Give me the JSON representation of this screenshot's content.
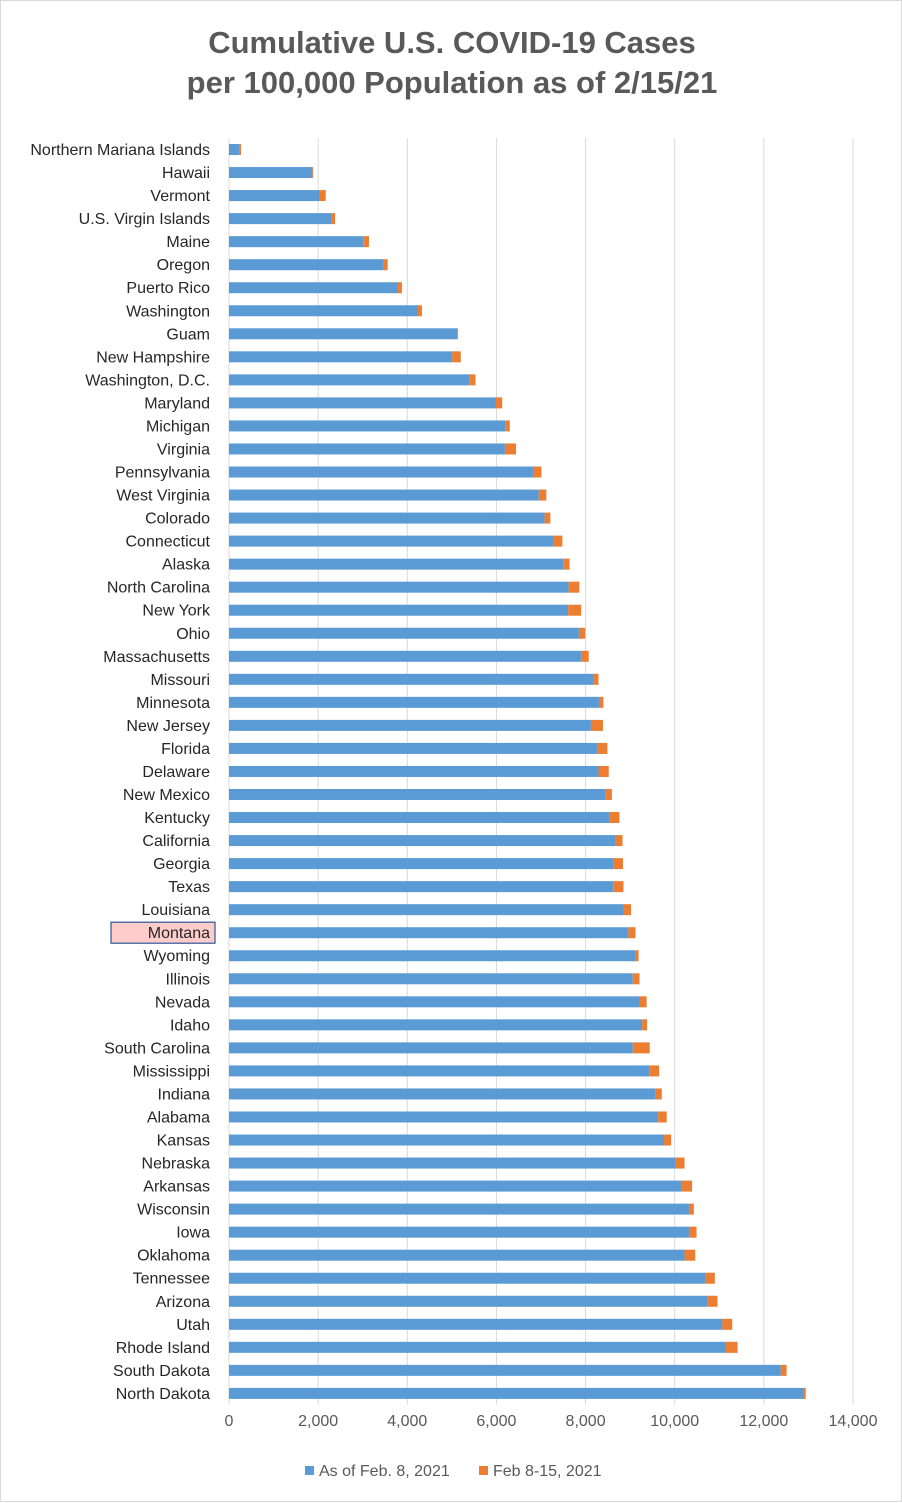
{
  "title_line1": "Cumulative U.S. COVID-19 Cases",
  "title_line2": "per 100,000 Population as of 2/15/21",
  "colors": {
    "base": "#5b9bd5",
    "delta": "#ed7d31",
    "grid": "#d9d9d9",
    "highlight_fill": "#ffcccc",
    "highlight_border": "#2f5597"
  },
  "highlight_category": "Montana",
  "chart_data": {
    "type": "bar",
    "orientation": "horizontal",
    "stacked": true,
    "title": "Cumulative U.S. COVID-19 Cases per 100,000 Population as of 2/15/21",
    "xlim": [
      0,
      14000
    ],
    "x_ticks": [
      0,
      2000,
      4000,
      6000,
      8000,
      10000,
      12000,
      14000
    ],
    "x_tick_labels": [
      "0",
      "2,000",
      "4,000",
      "6,000",
      "8,000",
      "10,000",
      "12,000",
      "14,000"
    ],
    "grid": true,
    "legend_position": "bottom",
    "categories": [
      "Northern Mariana Islands",
      "Hawaii",
      "Vermont",
      "U.S. Virgin Islands",
      "Maine",
      "Oregon",
      "Puerto Rico",
      "Washington",
      "Guam",
      "New Hampshire",
      "Washington, D.C.",
      "Maryland",
      "Michigan",
      "Virginia",
      "Pennsylvania",
      "West Virginia",
      "Colorado",
      "Connecticut",
      "Alaska",
      "North Carolina",
      "New York",
      "Ohio",
      "Massachusetts",
      "Missouri",
      "Minnesota",
      "New Jersey",
      "Florida",
      "Delaware",
      "New Mexico",
      "Kentucky",
      "California",
      "Georgia",
      "Texas",
      "Louisiana",
      "Montana",
      "Wyoming",
      "Illinois",
      "Nevada",
      "Idaho",
      "South Carolina",
      "Mississippi",
      "Indiana",
      "Alabama",
      "Kansas",
      "Nebraska",
      "Arkansas",
      "Wisconsin",
      "Iowa",
      "Oklahoma",
      "Tennessee",
      "Arizona",
      "Utah",
      "Rhode Island",
      "South Dakota",
      "North Dakota"
    ],
    "series": [
      {
        "name": "As of Feb. 8, 2021",
        "values": [
          240,
          1870,
          2040,
          2290,
          3010,
          3470,
          3790,
          4240,
          5120,
          5010,
          5390,
          5990,
          6210,
          6190,
          6820,
          6950,
          7080,
          7270,
          7500,
          7620,
          7610,
          7850,
          7900,
          8180,
          8300,
          8120,
          8270,
          8290,
          8440,
          8540,
          8680,
          8630,
          8620,
          8860,
          8960,
          9110,
          9060,
          9220,
          9270,
          9060,
          9440,
          9560,
          9630,
          9760,
          10020,
          10160,
          10320,
          10330,
          10220,
          10680,
          10740,
          11070,
          11140,
          12380,
          12890
        ]
      },
      {
        "name": "Feb 8-15, 2021",
        "values": [
          30,
          20,
          130,
          90,
          130,
          90,
          90,
          90,
          20,
          190,
          140,
          140,
          90,
          250,
          190,
          170,
          130,
          210,
          140,
          240,
          290,
          140,
          170,
          110,
          100,
          270,
          220,
          230,
          150,
          220,
          150,
          210,
          230,
          160,
          160,
          80,
          150,
          150,
          110,
          380,
          210,
          150,
          190,
          160,
          200,
          230,
          110,
          160,
          240,
          220,
          220,
          220,
          270,
          130,
          50
        ]
      }
    ]
  }
}
